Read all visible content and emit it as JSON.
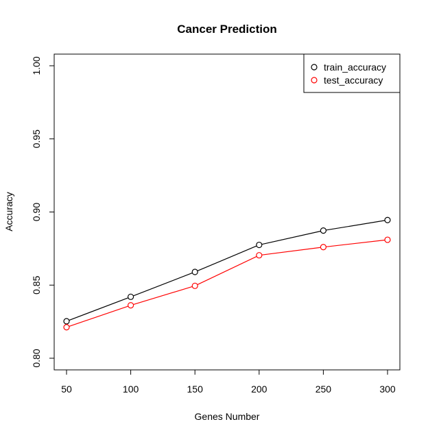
{
  "chart_data": {
    "type": "line",
    "title": "Cancer Prediction",
    "xlabel": "Genes Number",
    "ylabel": "Accuracy",
    "x": [
      50,
      100,
      150,
      200,
      250,
      300
    ],
    "x_ticks": [
      "50",
      "100",
      "150",
      "200",
      "250",
      "300"
    ],
    "y_ticks": [
      "0.80",
      "0.85",
      "0.90",
      "0.95",
      "1.00"
    ],
    "xlim": [
      50,
      300
    ],
    "ylim": [
      0.8,
      1.0
    ],
    "grid": false,
    "legend_position": "top-right",
    "series": [
      {
        "name": "train_accuracy",
        "color": "#000000",
        "values": [
          0.8253,
          0.842,
          0.859,
          0.8775,
          0.8873,
          0.8945
        ]
      },
      {
        "name": "test_accuracy",
        "color": "#ff0000",
        "values": [
          0.8212,
          0.8362,
          0.8495,
          0.8704,
          0.876,
          0.881
        ]
      }
    ]
  }
}
